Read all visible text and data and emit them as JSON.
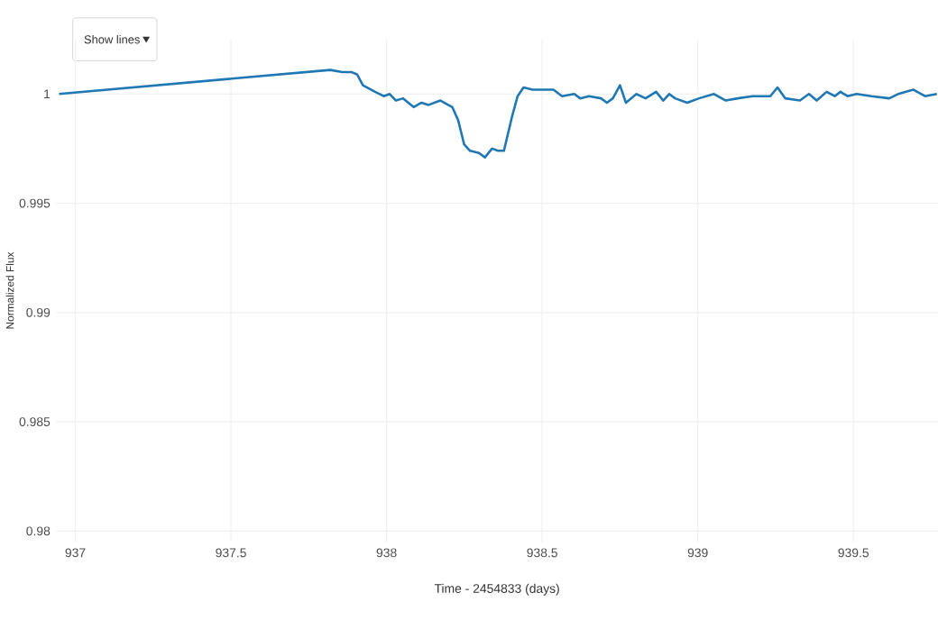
{
  "chart_data": {
    "type": "line",
    "xlabel": "Time - 2454833 (days)",
    "ylabel": "Normalized Flux",
    "annotations": [
      "Show lines"
    ],
    "x": [
      936.948,
      937.819,
      937.858,
      937.887,
      937.905,
      937.924,
      937.963,
      937.991,
      938.01,
      938.03,
      938.053,
      938.087,
      938.112,
      938.135,
      938.173,
      938.211,
      938.23,
      938.249,
      938.268,
      938.297,
      938.316,
      938.339,
      938.358,
      938.377,
      938.402,
      938.421,
      938.44,
      938.469,
      938.507,
      938.536,
      938.564,
      938.603,
      938.622,
      938.65,
      938.689,
      938.708,
      938.727,
      938.75,
      938.769,
      938.803,
      938.832,
      938.866,
      938.889,
      938.908,
      938.927,
      938.966,
      939.004,
      939.052,
      939.09,
      939.128,
      939.176,
      939.233,
      939.256,
      939.281,
      939.328,
      939.357,
      939.382,
      939.414,
      939.44,
      939.458,
      939.481,
      939.51,
      939.558,
      939.615,
      939.644,
      939.692,
      939.73,
      939.768
    ],
    "series": [
      {
        "color": "#1f77b4",
        "values": [
          1.0,
          1.0011,
          1.001,
          1.001,
          1.0009,
          1.0004,
          1.0001,
          0.9999,
          1.0,
          0.9997,
          0.9998,
          0.9994,
          0.9996,
          0.9995,
          0.9997,
          0.9994,
          0.9988,
          0.9977,
          0.9974,
          0.9973,
          0.9971,
          0.9975,
          0.9974,
          0.9974,
          0.9989,
          0.9999,
          1.0003,
          1.0002,
          1.0002,
          1.0002,
          0.9999,
          1.0,
          0.9998,
          0.9999,
          0.9998,
          0.9996,
          0.9998,
          1.0004,
          0.9996,
          1.0,
          0.9998,
          1.0001,
          0.9997,
          1.0,
          0.9998,
          0.9996,
          0.9998,
          1.0,
          0.9997,
          0.9998,
          0.9999,
          0.9999,
          1.0003,
          0.9998,
          0.9997,
          1.0,
          0.9997,
          1.0001,
          0.9999,
          1.0001,
          0.9999,
          1.0,
          0.9999,
          0.9998,
          1.0,
          1.0002,
          0.9999,
          1.0
        ]
      }
    ],
    "xlim": [
      936.94,
      939.77
    ],
    "ylim": [
      0.9795,
      1.0025
    ],
    "xticks": [
      937,
      937.5,
      938,
      938.5,
      939,
      939.5
    ],
    "yticks": [
      0.98,
      0.985,
      0.99,
      0.995,
      1
    ],
    "grid": true,
    "marker": "none",
    "line_style": "solid"
  }
}
